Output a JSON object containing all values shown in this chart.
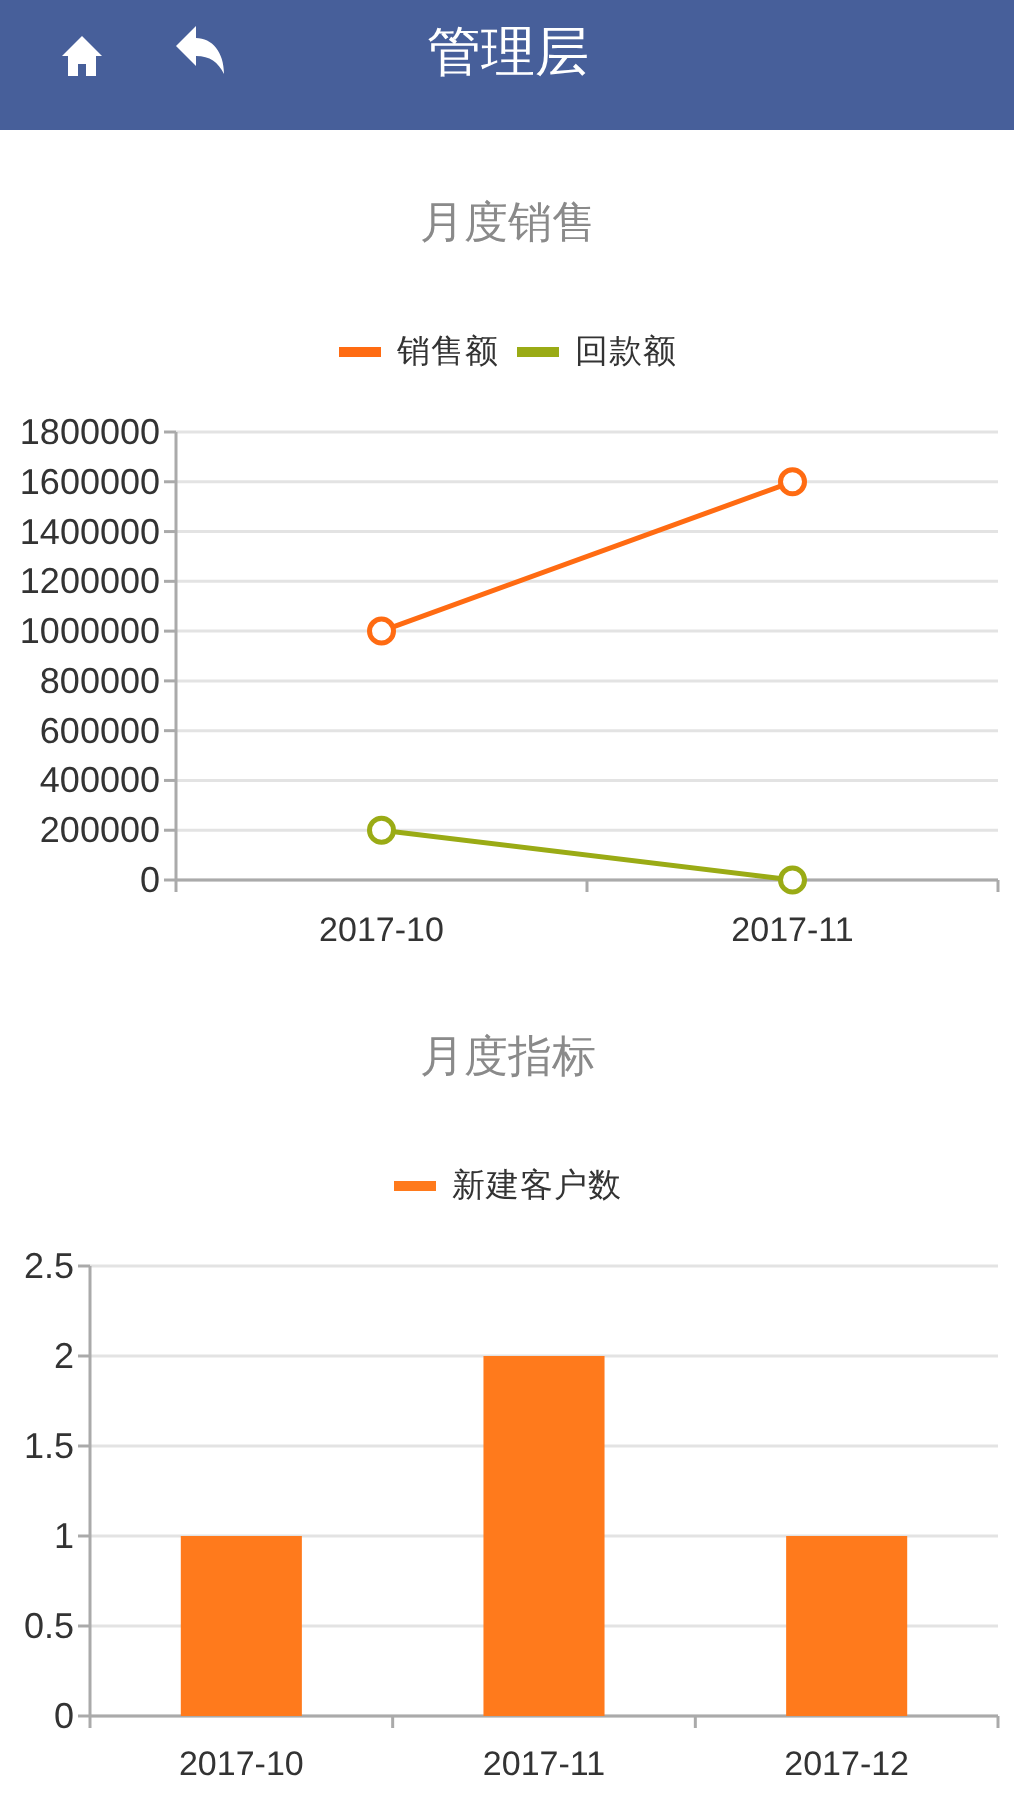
{
  "chart_data": [
    {
      "type": "other",
      "title": "管理层"
    },
    {
      "type": "line",
      "title": "月度销售",
      "categories": [
        "2017-10",
        "2017-11"
      ],
      "series": [
        {
          "name": "销售额",
          "color": "#ff6b12",
          "values": [
            1000000,
            1600000
          ]
        },
        {
          "name": "回款额",
          "color": "#9aab15",
          "values": [
            200000,
            0
          ]
        }
      ],
      "ylim": [
        0,
        1800000
      ],
      "yticks": [
        0,
        200000,
        400000,
        600000,
        800000,
        1000000,
        1200000,
        1400000,
        1600000,
        1800000
      ],
      "grid": "y",
      "legend": "top",
      "marker": "circle"
    },
    {
      "type": "bar",
      "title": "月度指标",
      "categories": [
        "2017-10",
        "2017-11",
        "2017-12"
      ],
      "series": [
        {
          "name": "新建客户数",
          "color": "#ff7a1c",
          "values": [
            1,
            2,
            1
          ]
        }
      ],
      "ylim": [
        0,
        2.5
      ],
      "yticks": [
        0,
        0.5,
        1,
        1.5,
        2,
        2.5
      ],
      "grid": "y",
      "legend": "top"
    }
  ]
}
